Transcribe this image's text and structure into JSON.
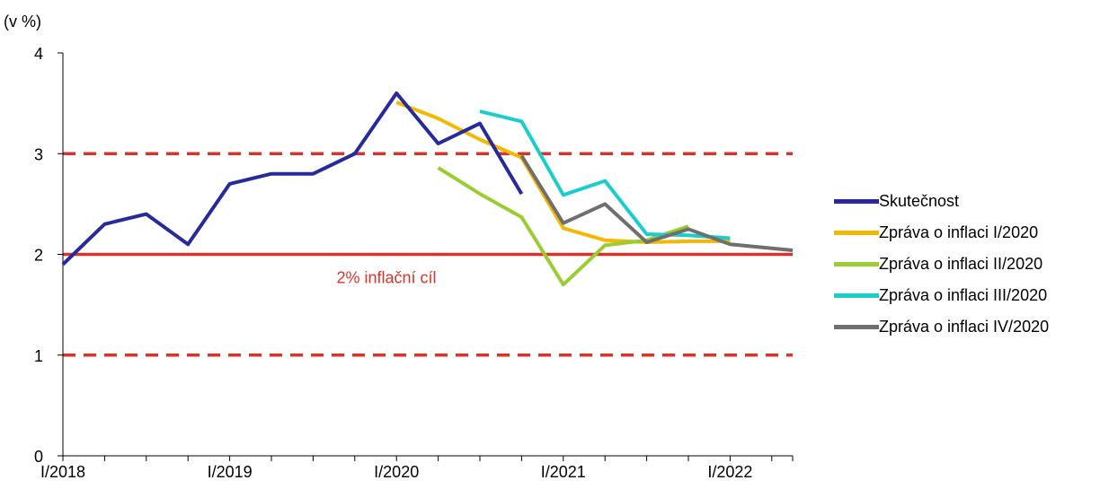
{
  "chart_data": {
    "type": "line",
    "unit_label": "(v %)",
    "x_tick_labels": [
      "I/2018",
      "I/2019",
      "I/2020",
      "I/2021",
      "I/2022"
    ],
    "y_ticks": [
      0,
      1,
      2,
      3,
      4
    ],
    "ylim": [
      0,
      4
    ],
    "xlim": [
      0,
      17.5
    ],
    "grid": false,
    "legend_position": "right",
    "reference_lines": [
      {
        "value": 3,
        "style": "dashed",
        "color": "#d9342b"
      },
      {
        "value": 1,
        "style": "dashed",
        "color": "#d9342b"
      },
      {
        "value": 2,
        "style": "solid",
        "color": "#d9342b",
        "label": "2% inflační cíl"
      }
    ],
    "series": [
      {
        "name": "Skutečnost",
        "color": "#262a9b",
        "points": [
          [
            0,
            1.9
          ],
          [
            1,
            2.3
          ],
          [
            2,
            2.4
          ],
          [
            3,
            2.1
          ],
          [
            4,
            2.7
          ],
          [
            5,
            2.8
          ],
          [
            6,
            2.8
          ],
          [
            7,
            3.0
          ],
          [
            8,
            3.6
          ],
          [
            9,
            3.1
          ],
          [
            10,
            3.3
          ],
          [
            11,
            2.6
          ]
        ]
      },
      {
        "name": "Zpráva o inflaci I/2020",
        "color": "#f5b800",
        "points": [
          [
            8,
            3.51
          ],
          [
            9,
            3.35
          ],
          [
            10,
            3.14
          ],
          [
            11,
            2.96
          ],
          [
            12,
            2.26
          ],
          [
            13,
            2.14
          ],
          [
            14,
            2.12
          ],
          [
            15,
            2.13
          ],
          [
            16,
            2.13
          ]
        ]
      },
      {
        "name": "Zpráva o inflaci II/2020",
        "color": "#9acd32",
        "points": [
          [
            9,
            2.86
          ],
          [
            10,
            2.6
          ],
          [
            11,
            2.37
          ],
          [
            12,
            1.7
          ],
          [
            13,
            2.09
          ],
          [
            14,
            2.14
          ],
          [
            15,
            2.28
          ]
        ]
      },
      {
        "name": "Zpráva o inflaci III/2020",
        "color": "#1ccdcd",
        "points": [
          [
            10,
            3.42
          ],
          [
            11,
            3.32
          ],
          [
            12,
            2.59
          ],
          [
            13,
            2.73
          ],
          [
            14,
            2.2
          ],
          [
            15,
            2.19
          ],
          [
            16,
            2.16
          ]
        ]
      },
      {
        "name": "Zpráva o inflaci IV/2020",
        "color": "#6f6f6f",
        "points": [
          [
            11,
            2.98
          ],
          [
            12,
            2.31
          ],
          [
            13,
            2.5
          ],
          [
            14,
            2.12
          ],
          [
            15,
            2.25
          ],
          [
            16,
            2.1
          ],
          [
            17.5,
            2.04
          ]
        ]
      }
    ]
  }
}
